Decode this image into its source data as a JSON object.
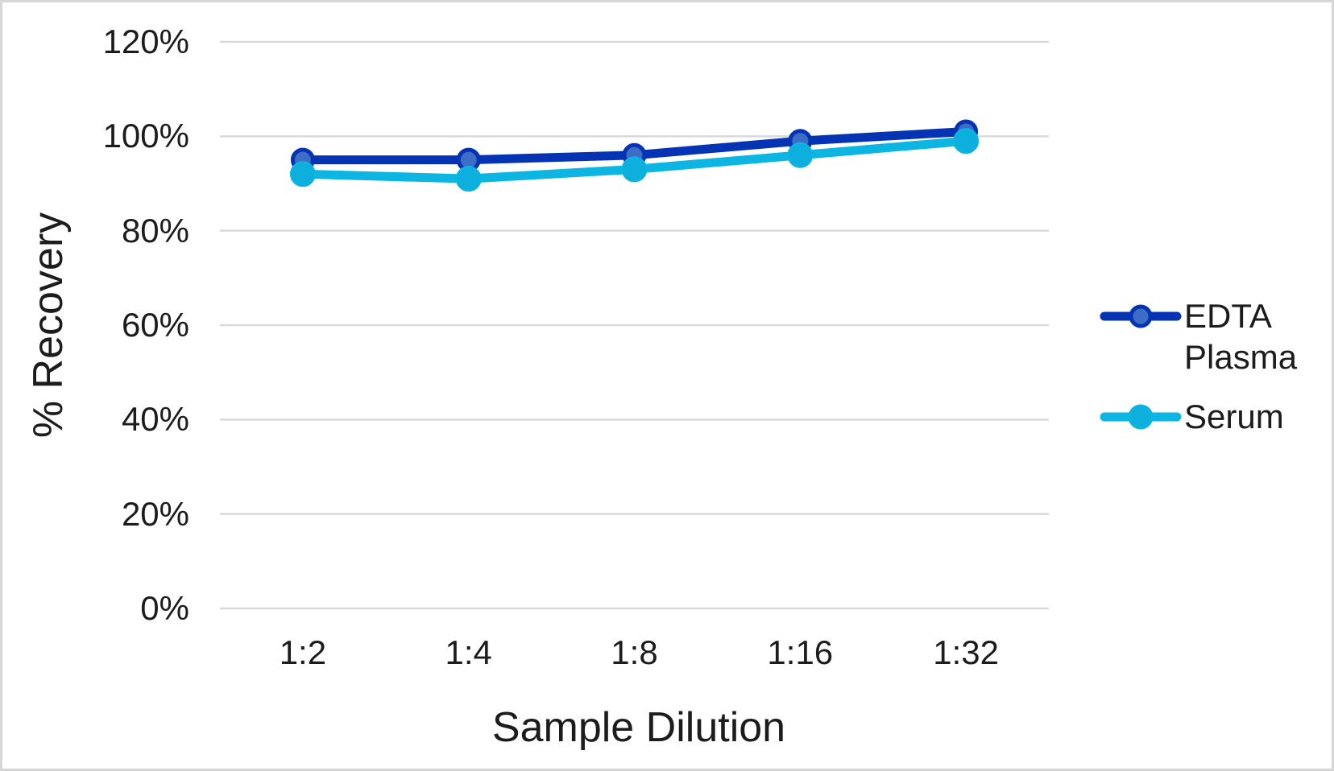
{
  "frame": {
    "background_color": "#ffffff",
    "border_color": "#d6d6d6"
  },
  "chart_data": {
    "type": "line",
    "title": "",
    "xlabel": "Sample Dilution",
    "ylabel": "% Recovery",
    "categories": [
      "1:2",
      "1:4",
      "1:8",
      "1:16",
      "1:32"
    ],
    "series": [
      {
        "name": "EDTA Plasma",
        "values": [
          95,
          95,
          96,
          99,
          101
        ],
        "line_color": "#0433b4",
        "marker_fill": "#3d6dc7",
        "marker_stroke": "#0433b4"
      },
      {
        "name": "Serum",
        "values": [
          92,
          91,
          93,
          96,
          99
        ],
        "line_color": "#0cb5e2",
        "marker_fill": "#0db0dc",
        "marker_stroke": "#0cb5e2"
      }
    ],
    "ylim": [
      0,
      120
    ],
    "ytick_step": 20,
    "ytick_labels": [
      "0%",
      "20%",
      "40%",
      "60%",
      "80%",
      "100%",
      "120%"
    ],
    "ytick_format": "percent",
    "grid": "horizontal",
    "gridline_color": "#d9d9d9",
    "legend_position": "right",
    "text_color": "#1c1c1c"
  }
}
